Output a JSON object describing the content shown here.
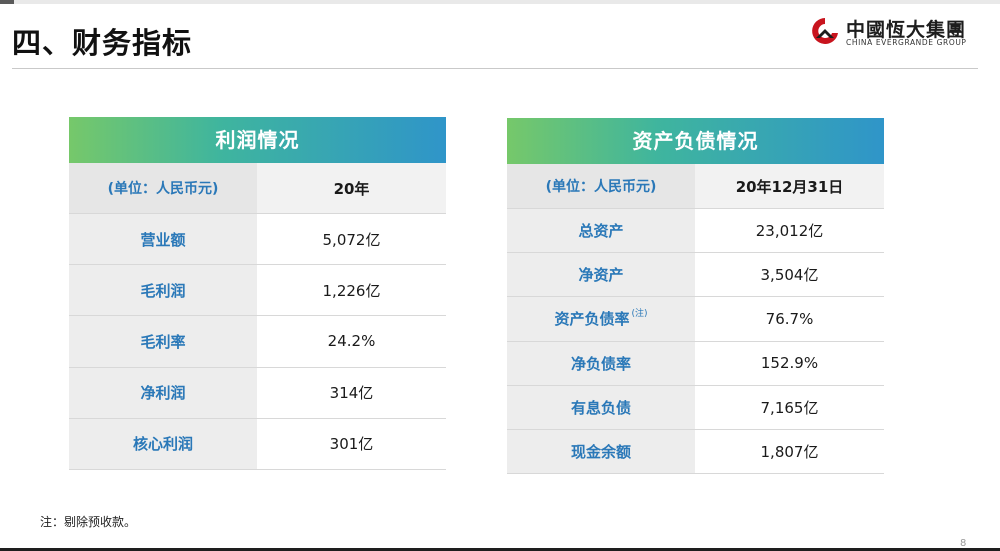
{
  "page": {
    "title": "四、财务指标",
    "footnote": "注：剔除预收款。",
    "page_number": "8"
  },
  "logo": {
    "name_cn": "中國恆大集團",
    "name_en": "CHINA EVERGRANDE GROUP",
    "colors": {
      "mark": "#c8141e",
      "text": "#1d1d1d"
    }
  },
  "profit_table": {
    "title": "利润情况",
    "unit_label": "(单位：人民币元)",
    "period": "20年",
    "rows": [
      {
        "label": "营业额",
        "value": "5,072亿"
      },
      {
        "label": "毛利润",
        "value": "1,226亿"
      },
      {
        "label": "毛利率",
        "value": "24.2%"
      },
      {
        "label": "净利润",
        "value": "314亿"
      },
      {
        "label": "核心利润",
        "value": "301亿"
      }
    ]
  },
  "balance_table": {
    "title": "资产负债情况",
    "unit_label": "(单位：人民币元)",
    "period": "20年12月31日",
    "rows": [
      {
        "label": "总资产",
        "value": "23,012亿",
        "note": ""
      },
      {
        "label": "净资产",
        "value": "3,504亿",
        "note": ""
      },
      {
        "label": "资产负债率",
        "value": "76.7%",
        "note": "(注)"
      },
      {
        "label": "净负债率",
        "value": "152.9%",
        "note": ""
      },
      {
        "label": "有息负债",
        "value": "7,165亿",
        "note": ""
      },
      {
        "label": "现金余额",
        "value": "1,807亿",
        "note": ""
      }
    ]
  },
  "theme": {
    "header_gradient": [
      "#76c86a",
      "#3fb59e",
      "#2f95c9"
    ],
    "label_color": "#2a78b8"
  }
}
